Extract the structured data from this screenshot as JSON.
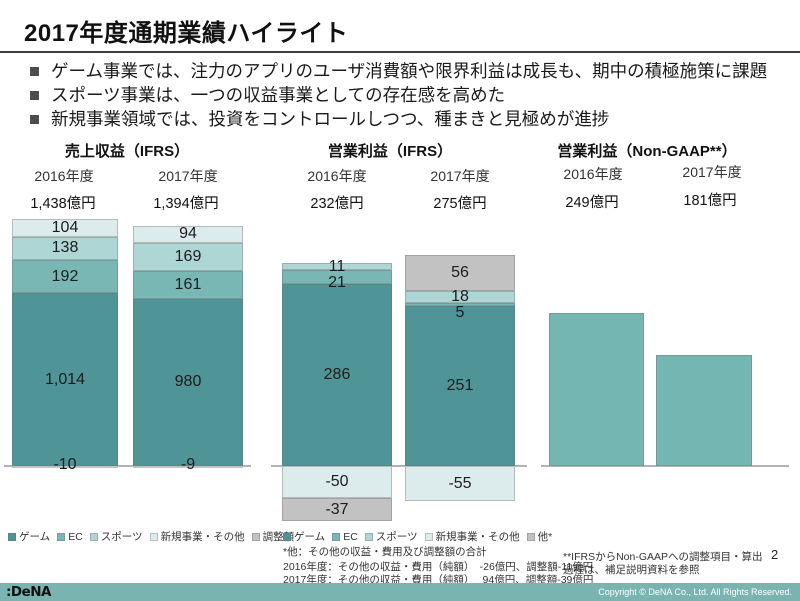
{
  "slide": {
    "title": "2017年度通期業績ハイライト",
    "bullets": [
      "ゲーム事業では、注力のアプリのユーザ消費額や限界利益は成長も、期中の積極施策に課題",
      "スポーツ事業は、一つの収益事業としての存在感を高めた",
      "新規事業領域では、投資をコントロールしつつ、種まきと見極めが進捗"
    ],
    "page_number": "2"
  },
  "footer": {
    "logo_text": ":DeNA",
    "copyright": "Copyright © DeNA Co., Ltd. All Rights Reserved."
  },
  "footnotes": {
    "left": [
      "*他：その他の収益・費用及び調整額の合計",
      "2016年度：その他の収益・費用（純額）　-26億円、調整額-11億円",
      "2017年度：その他の収益・費用（純額）　 94億円、調整額-39億円"
    ],
    "right": [
      "**IFRSからNon-GAAPへの調整項目・算出",
      "過程は、補足説明資料を参照"
    ]
  },
  "colors": {
    "game": "#4f9496",
    "ec": "#79b7b5",
    "sports": "#aed6d5",
    "new_business": "#dcecec",
    "gray_other": "#c3c2c2",
    "nongaap_bar": "#74b6b2",
    "footer_bar": "#7ab4b0",
    "axis_line": "#b3b3b3"
  },
  "chart_data": [
    {
      "type": "bar",
      "stacked": true,
      "title": "売上収益（IFRS）",
      "unit": "億円",
      "categories": [
        "2016年度",
        "2017年度"
      ],
      "totals": [
        "1,438億円",
        "1,394億円"
      ],
      "show_labels": true,
      "series": [
        {
          "name": "ゲーム",
          "color": "#4f9496",
          "values": [
            1014,
            980
          ],
          "labels": [
            "1,014",
            "980"
          ]
        },
        {
          "name": "EC",
          "color": "#79b7b5",
          "values": [
            192,
            161
          ],
          "labels": [
            "192",
            "161"
          ]
        },
        {
          "name": "スポーツ",
          "color": "#aed6d5",
          "values": [
            138,
            169
          ],
          "labels": [
            "138",
            "169"
          ]
        },
        {
          "name": "新規事業・その他",
          "color": "#dcecec",
          "values": [
            104,
            94
          ],
          "labels": [
            "104",
            "94"
          ]
        },
        {
          "name": "調整額",
          "color": "#c3c2c2",
          "values": [
            -10,
            -9
          ],
          "labels": [
            "-10",
            "-9"
          ]
        }
      ]
    },
    {
      "type": "bar",
      "stacked": true,
      "title": "営業利益（IFRS）",
      "unit": "億円",
      "categories": [
        "2016年度",
        "2017年度"
      ],
      "totals": [
        "232億円",
        "275億円"
      ],
      "show_labels": true,
      "series": [
        {
          "name": "ゲーム",
          "color": "#4f9496",
          "values": [
            286,
            251
          ],
          "labels": [
            "286",
            "251"
          ]
        },
        {
          "name": "EC",
          "color": "#79b7b5",
          "values": [
            21,
            5
          ],
          "labels": [
            "21",
            "5"
          ]
        },
        {
          "name": "スポーツ",
          "color": "#aed6d5",
          "values": [
            11,
            18
          ],
          "labels": [
            "11",
            "18"
          ]
        },
        {
          "name": "新規事業・その他",
          "color": "#dcecec",
          "values": [
            -50,
            -55
          ],
          "labels": [
            "-50",
            "-55"
          ]
        },
        {
          "name": "他*",
          "color": "#c3c2c2",
          "values": [
            -37,
            56
          ],
          "labels": [
            "-37",
            "56"
          ]
        }
      ]
    },
    {
      "type": "bar",
      "stacked": false,
      "title": "営業利益（Non-GAAP**）",
      "unit": "億円",
      "categories": [
        "2016年度",
        "2017年度"
      ],
      "totals": [
        "249億円",
        "181億円"
      ],
      "show_labels": false,
      "series": [
        {
          "name": "営業利益",
          "color": "#74b6b2",
          "values": [
            249,
            181
          ],
          "labels": [
            "",
            ""
          ]
        }
      ]
    }
  ]
}
